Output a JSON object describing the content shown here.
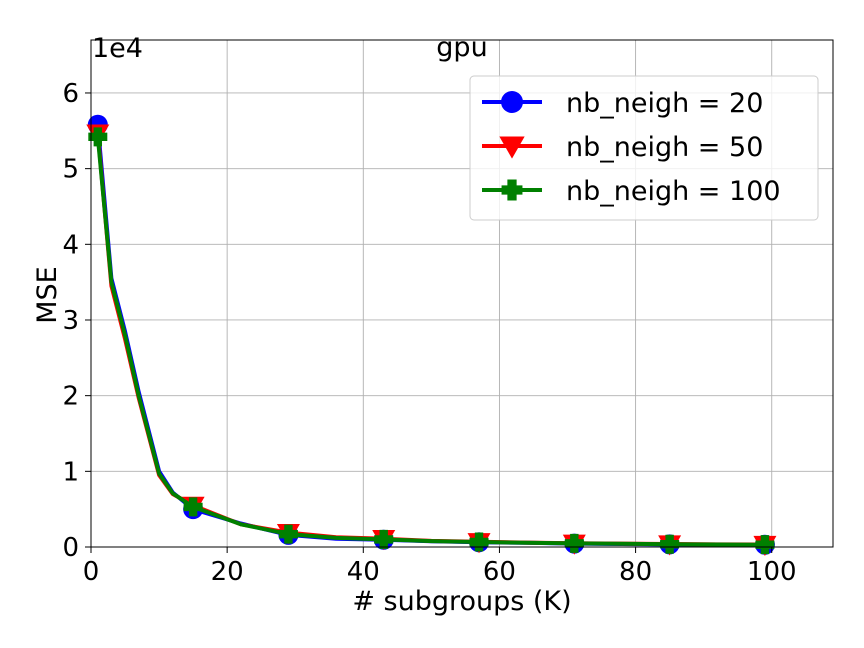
{
  "chart_data": {
    "type": "line",
    "title": "gpu",
    "xlabel": "# subgroups (K)",
    "ylabel": "MSE",
    "y_multiplier_label": "1e4",
    "xlim": [
      0,
      109
    ],
    "ylim": [
      0,
      6.7
    ],
    "xticks": [
      0,
      20,
      40,
      60,
      80,
      100
    ],
    "yticks": [
      0,
      1,
      2,
      3,
      4,
      5,
      6
    ],
    "grid": true,
    "legend_position": "top-right",
    "x": [
      1,
      3,
      5,
      7,
      10,
      12,
      15,
      22,
      29,
      36,
      43,
      50,
      57,
      64,
      71,
      78,
      85,
      92,
      99
    ],
    "series": [
      {
        "name": "nb_neigh = 20",
        "color": "#0000ff",
        "marker": "circle",
        "values": [
          5.58,
          3.55,
          2.85,
          2.05,
          1.0,
          0.72,
          0.5,
          0.31,
          0.16,
          0.11,
          0.095,
          0.075,
          0.062,
          0.055,
          0.045,
          0.04,
          0.035,
          0.032,
          0.03
        ]
      },
      {
        "name": "nb_neigh = 50",
        "color": "#ff0000",
        "marker": "triangle-down",
        "values": [
          5.47,
          3.45,
          2.75,
          1.97,
          0.95,
          0.7,
          0.55,
          0.3,
          0.19,
          0.13,
          0.11,
          0.08,
          0.07,
          0.058,
          0.05,
          0.045,
          0.04,
          0.035,
          0.033
        ]
      },
      {
        "name": "nb_neigh = 100",
        "color": "#008000",
        "marker": "plus",
        "values": [
          5.42,
          3.5,
          2.8,
          2.0,
          0.97,
          0.71,
          0.53,
          0.3,
          0.17,
          0.12,
          0.1,
          0.078,
          0.066,
          0.056,
          0.048,
          0.042,
          0.037,
          0.033,
          0.031
        ]
      }
    ],
    "marker_x": [
      1,
      15,
      29,
      43,
      57,
      71,
      85,
      99
    ]
  }
}
